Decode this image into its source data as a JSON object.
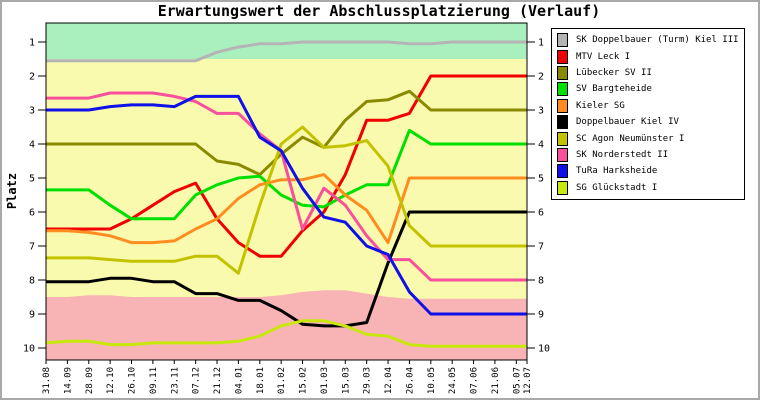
{
  "chart_data": {
    "type": "line",
    "title": "Erwartungswert der Abschlussplatzierung (Verlauf)",
    "ylabel": "Platz",
    "grid": false,
    "legend_position": "top-right",
    "y_axis": {
      "ticks": [
        "1",
        "2",
        "3",
        "4",
        "5",
        "6",
        "7",
        "8",
        "9",
        "10"
      ],
      "min": 0.44,
      "max": 10.35,
      "inverted": true,
      "mirrored_right": true
    },
    "x_labels": [
      "31.08",
      "14.09",
      "28.09",
      "12.10",
      "26.10",
      "09.11",
      "23.11",
      "07.12",
      "21.12",
      "04.01",
      "18.01",
      "01.02",
      "15.02",
      "01.03",
      "15.03",
      "29.03",
      "12.04",
      "26.04",
      "10.05",
      "24.05",
      "07.06",
      "21.06",
      "05.07",
      "12.07"
    ],
    "x_weeks": [
      0,
      2,
      4,
      6,
      8,
      10,
      12,
      14,
      16,
      18,
      20,
      22,
      24,
      26,
      28,
      30,
      32,
      34,
      36,
      38,
      40,
      42,
      44,
      45
    ],
    "bands": {
      "promotion": {
        "color": "#aaf0be",
        "to_rank": 1.5
      },
      "middle": {
        "color": "#fafaae"
      },
      "relegation": {
        "color": "#f8b4b4",
        "boundary_ranks": [
          8.5,
          8.5,
          8.45,
          8.45,
          8.5,
          8.5,
          8.5,
          8.5,
          8.5,
          8.5,
          8.5,
          8.45,
          8.35,
          8.3,
          8.3,
          8.4,
          8.5,
          8.55,
          8.55,
          8.55,
          8.55,
          8.55,
          8.55,
          8.55
        ]
      }
    },
    "series": [
      {
        "name": "SK Doppelbauer (Turm) Kiel III",
        "color": "#b4b4b4",
        "values": [
          1.55,
          1.55,
          1.55,
          1.55,
          1.55,
          1.55,
          1.55,
          1.55,
          1.3,
          1.15,
          1.05,
          1.05,
          1.0,
          1.0,
          1.0,
          1.0,
          1.0,
          1.05,
          1.05,
          1.0,
          1.0,
          1.0,
          1.0,
          1.0
        ]
      },
      {
        "name": "MTV Leck I",
        "color": "#f00000",
        "values": [
          6.5,
          6.5,
          6.5,
          6.5,
          6.2,
          5.8,
          5.4,
          5.15,
          6.2,
          6.9,
          7.3,
          7.3,
          6.55,
          6.0,
          4.9,
          3.3,
          3.3,
          3.1,
          2.0,
          2.0,
          2.0,
          2.0,
          2.0,
          2.0
        ]
      },
      {
        "name": "Lübecker SV II",
        "color": "#8a8a00",
        "values": [
          4.0,
          4.0,
          4.0,
          4.0,
          4.0,
          4.0,
          4.0,
          4.0,
          4.5,
          4.6,
          4.9,
          4.3,
          3.8,
          4.1,
          3.3,
          2.75,
          2.7,
          2.45,
          3.0,
          3.0,
          3.0,
          3.0,
          3.0,
          3.0
        ]
      },
      {
        "name": "SV Bargteheide",
        "color": "#00e000",
        "values": [
          5.35,
          5.35,
          5.35,
          5.8,
          6.2,
          6.2,
          6.2,
          5.5,
          5.2,
          5.0,
          4.95,
          5.5,
          5.8,
          5.85,
          5.5,
          5.2,
          5.2,
          3.6,
          4.0,
          4.0,
          4.0,
          4.0,
          4.0,
          4.0
        ]
      },
      {
        "name": "Kieler SG",
        "color": "#ff8c20",
        "values": [
          6.55,
          6.55,
          6.6,
          6.7,
          6.9,
          6.9,
          6.85,
          6.5,
          6.2,
          5.6,
          5.2,
          5.05,
          5.05,
          4.9,
          5.5,
          5.95,
          6.9,
          5.0,
          5.0,
          5.0,
          5.0,
          5.0,
          5.0,
          5.0
        ]
      },
      {
        "name": "Doppelbauer Kiel IV",
        "color": "#000000",
        "values": [
          8.05,
          8.05,
          8.05,
          7.95,
          7.95,
          8.05,
          8.05,
          8.4,
          8.4,
          8.6,
          8.6,
          8.9,
          9.3,
          9.35,
          9.35,
          9.25,
          7.5,
          6.0,
          6.0,
          6.0,
          6.0,
          6.0,
          6.0,
          6.0
        ]
      },
      {
        "name": "SC Agon Neumünster I",
        "color": "#c2c200",
        "values": [
          7.35,
          7.35,
          7.35,
          7.4,
          7.45,
          7.45,
          7.45,
          7.3,
          7.3,
          7.8,
          5.8,
          4.0,
          3.5,
          4.1,
          4.05,
          3.9,
          4.65,
          6.4,
          7.0,
          7.0,
          7.0,
          7.0,
          7.0,
          7.0
        ]
      },
      {
        "name": "SK Norderstedt II",
        "color": "#f8509c",
        "values": [
          2.65,
          2.65,
          2.65,
          2.5,
          2.5,
          2.5,
          2.6,
          2.75,
          3.1,
          3.1,
          3.7,
          4.2,
          6.5,
          5.3,
          5.8,
          6.7,
          7.4,
          7.4,
          8.0,
          8.0,
          8.0,
          8.0,
          8.0,
          8.0
        ]
      },
      {
        "name": "TuRa Harksheide",
        "color": "#1010e8",
        "values": [
          3.0,
          3.0,
          3.0,
          2.9,
          2.85,
          2.85,
          2.9,
          2.6,
          2.6,
          2.6,
          3.8,
          4.2,
          5.3,
          6.15,
          6.3,
          7.0,
          7.25,
          8.35,
          9.0,
          9.0,
          9.0,
          9.0,
          9.0,
          9.0
        ]
      },
      {
        "name": "SG Glückstadt I",
        "color": "#c8e80c",
        "values": [
          9.85,
          9.8,
          9.8,
          9.9,
          9.9,
          9.85,
          9.85,
          9.85,
          9.85,
          9.8,
          9.65,
          9.35,
          9.2,
          9.2,
          9.35,
          9.6,
          9.65,
          9.9,
          9.95,
          9.95,
          9.95,
          9.95,
          9.95,
          9.95
        ]
      }
    ]
  }
}
